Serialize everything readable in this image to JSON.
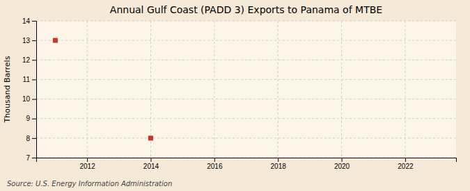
{
  "chart_data": {
    "type": "scatter",
    "title": "Annual Gulf Coast (PADD 3) Exports to Panama of MTBE",
    "ylabel": "Thousand Barrels",
    "source": "Source: U.S. Energy Information Administration",
    "x": [
      2011,
      2014
    ],
    "values": [
      13,
      8
    ],
    "color": "#c0392b",
    "marker": "square",
    "xlim": [
      2010.4,
      2023.6
    ],
    "xticks": [
      2012,
      2014,
      2016,
      2018,
      2020,
      2022
    ],
    "ylim": [
      7,
      14
    ],
    "yticks": [
      7,
      8,
      9,
      10,
      11,
      12,
      13,
      14
    ],
    "grid": true
  }
}
